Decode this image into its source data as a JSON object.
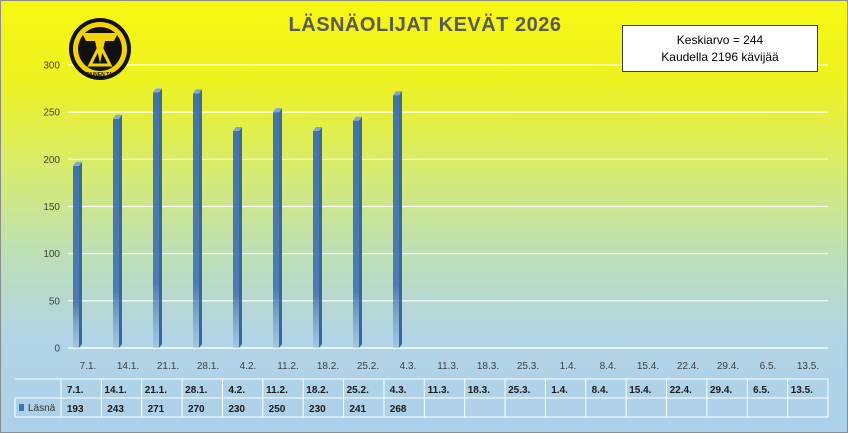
{
  "title": "LÄSNÄOLIJAT KEVÄT 2026",
  "info": {
    "line1": "Keskiarvo = 244",
    "line2": "Kaudella 2196 kävijää"
  },
  "logo": {
    "name": "club-logo",
    "text": "PAINEN TAI"
  },
  "colors": {
    "bar": "#3e74b3",
    "bar_dark": "#27558f",
    "bar_light": "#7fa8d8",
    "grid": "#ffffff",
    "axis_text": "#404040"
  },
  "chart_data": {
    "type": "bar",
    "categories": [
      "7.1.",
      "14.1.",
      "21.1.",
      "28.1.",
      "4.2.",
      "11.2.",
      "18.2.",
      "25.2.",
      "4.3.",
      "11.3.",
      "18.3.",
      "25.3.",
      "1.4.",
      "8.4.",
      "15.4.",
      "22.4.",
      "29.4.",
      "6.5.",
      "13.5."
    ],
    "series": [
      {
        "name": "Läsnä",
        "values": [
          193,
          243,
          271,
          270,
          230,
          250,
          230,
          241,
          268,
          null,
          null,
          null,
          null,
          null,
          null,
          null,
          null,
          null,
          null
        ]
      }
    ],
    "title": "LÄSNÄOLIJAT KEVÄT 2026",
    "ylim": [
      0,
      300
    ],
    "yticks": [
      0,
      50,
      100,
      150,
      200,
      250,
      300
    ],
    "grid": true,
    "legend": "data-table",
    "table_categories": [
      "7.1.",
      "14.1.",
      "21.1.",
      "28.1.",
      "4.2.",
      "11.2.",
      "18.2.",
      "25.2.",
      "4.3.",
      "11.3.",
      "18.3.",
      "25.3.",
      "1.4.",
      "8.4.",
      "15.4.",
      "22.4.",
      "29.4.",
      "6.5.",
      "13.5."
    ]
  }
}
